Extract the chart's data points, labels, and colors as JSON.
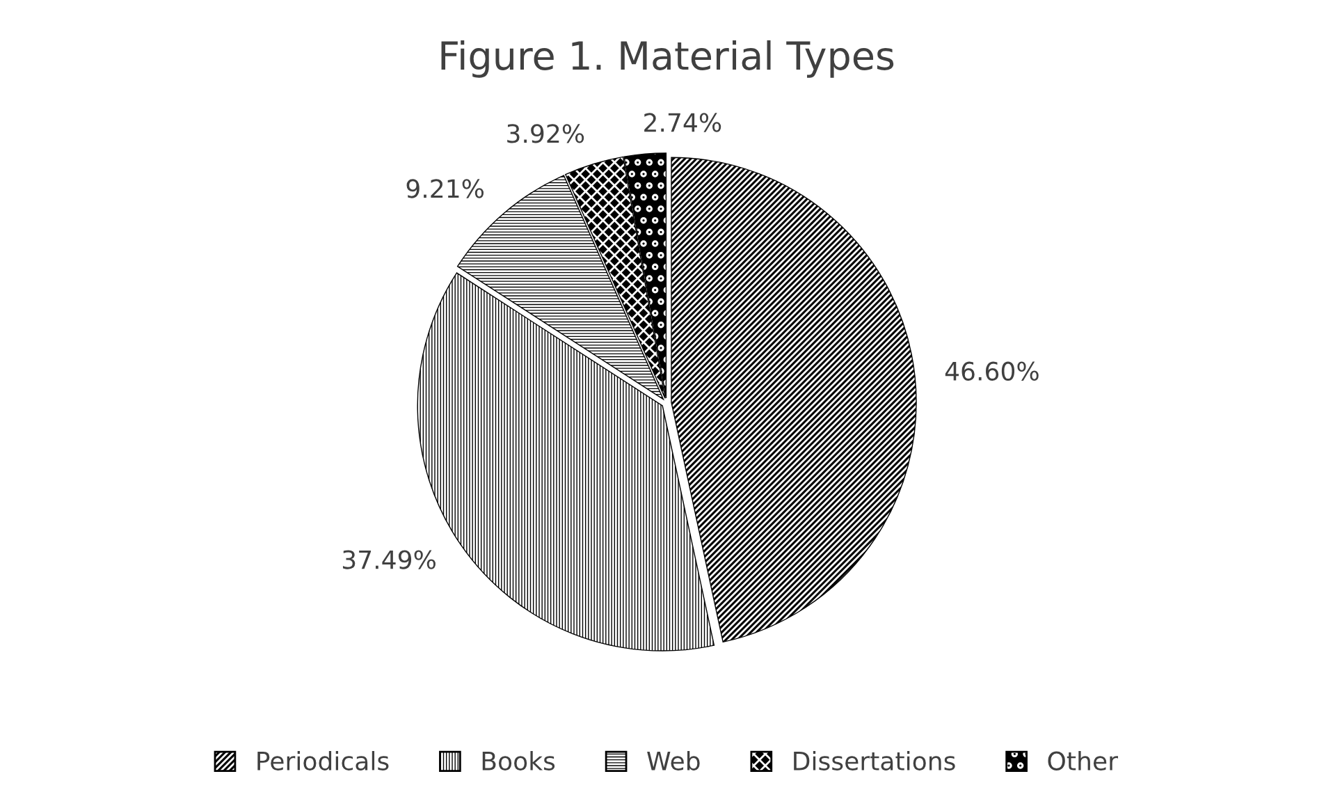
{
  "chart_data": {
    "type": "pie",
    "title": "Figure 1. Material Types",
    "categories": [
      "Periodicals",
      "Books",
      "Web",
      "Dissertations",
      "Other"
    ],
    "values": [
      46.6,
      37.49,
      9.21,
      3.92,
      2.74
    ],
    "value_labels": [
      "46.60%",
      "37.49%",
      "9.21%",
      "3.92%",
      "2.74%"
    ],
    "colors": [
      "#000000",
      "#000000",
      "#000000",
      "#000000",
      "#000000"
    ],
    "legend": "bottom"
  }
}
